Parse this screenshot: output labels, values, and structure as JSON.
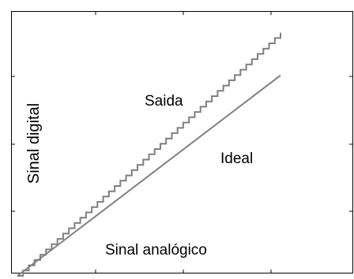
{
  "chart_data": {
    "type": "line",
    "title": "",
    "xlabel": "Sinal analógico",
    "ylabel": "Sinal digital",
    "xlim": [
      0,
      1
    ],
    "ylim": [
      0,
      1
    ],
    "grid": false,
    "series": [
      {
        "name": "Ideal",
        "style": "straight",
        "color": "#7f7f7f",
        "points": [
          [
            0.0,
            0.0
          ],
          [
            1.0,
            0.8
          ]
        ]
      },
      {
        "name": "Saida",
        "style": "staircase",
        "color": "#7f7f7f",
        "steps": 46,
        "points": [
          [
            0.0,
            0.0
          ],
          [
            1.0,
            0.97
          ]
        ]
      }
    ]
  }
}
